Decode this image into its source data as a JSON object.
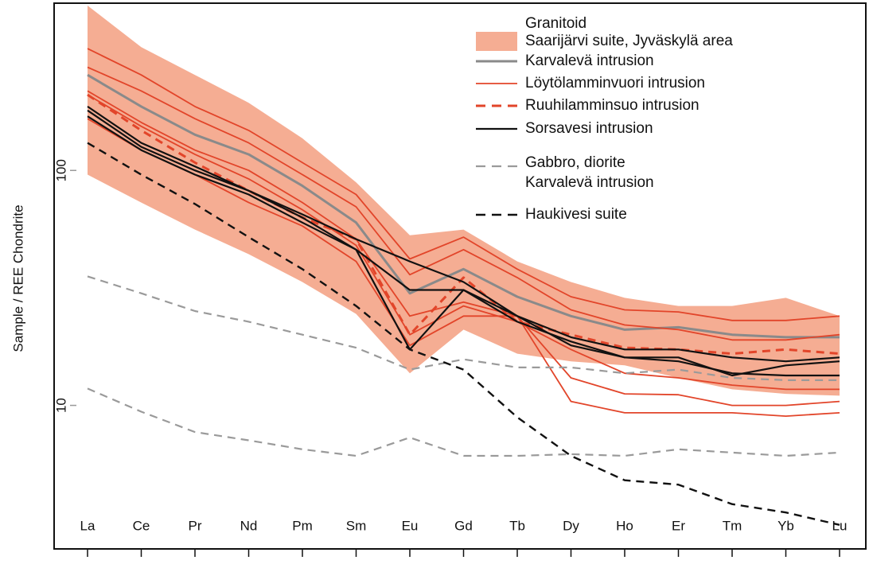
{
  "chart_data": {
    "type": "line",
    "y_label": "Sample / REE Chondrite",
    "log_y": true,
    "categories": [
      "La",
      "Ce",
      "Pr",
      "Nd",
      "Pm",
      "Sm",
      "Eu",
      "Gd",
      "Tb",
      "Dy",
      "Ho",
      "Er",
      "Tm",
      "Yb",
      "Lu"
    ],
    "ylim": [
      2.45,
      515
    ],
    "yticks": [
      10,
      100
    ],
    "legend_groups": [
      "Granitoid",
      "Gabbro, diorite"
    ],
    "series": [
      {
        "name": "Saarijärvi suite, Jyväskylä area",
        "group": 0,
        "kind": "band",
        "color": "#f5ad93",
        "upper": [
          503,
          335,
          255,
          194,
          137,
          89,
          53,
          56,
          41,
          33.5,
          28.7,
          26.5,
          26.5,
          28.7,
          24
        ],
        "lower": [
          96,
          73,
          56,
          44,
          33.5,
          24.5,
          13.7,
          21,
          16.6,
          15.4,
          14.8,
          13.1,
          11.7,
          11.2,
          11
        ]
      },
      {
        "name": "Karvalevä intrusion",
        "group": 0,
        "color": "#8a8a8a",
        "width": 3,
        "dash": false,
        "lines": [
          [
            255,
            187,
            142,
            117,
            86,
            60,
            30,
            38,
            29,
            24,
            21,
            21.5,
            20,
            19.5,
            19.5
          ]
        ]
      },
      {
        "name": "Löytölamminvuori intrusion",
        "group": 0,
        "color": "#e2452a",
        "width": 1.8,
        "dash": false,
        "lines": [
          [
            330,
            255,
            187,
            148,
            108,
            79,
            42,
            52,
            38,
            29,
            25.5,
            25,
            23,
            23,
            24
          ],
          [
            275,
            218,
            166,
            131,
            96,
            70,
            36,
            46,
            35,
            25.5,
            22,
            21,
            19,
            19,
            20
          ],
          [
            210,
            154,
            117,
            92,
            68,
            48,
            20,
            26.5,
            22.7,
            17.3,
            13.7,
            13.1,
            12.2,
            11.7,
            11.7
          ],
          [
            218,
            160,
            122,
            100,
            73,
            51,
            24,
            27.5,
            24,
            13.1,
            11.2,
            11.1,
            10,
            10,
            10.4
          ],
          [
            166,
            122,
            96,
            73,
            58,
            41,
            18,
            24,
            24,
            10.4,
            9.3,
            9.3,
            9.3,
            9,
            9.3
          ]
        ]
      },
      {
        "name": "Ruuhilamminsuo intrusion",
        "group": 0,
        "color": "#e2452a",
        "width": 3,
        "dash": true,
        "lines": [
          [
            210,
            148,
            108,
            82,
            63,
            51,
            20,
            35,
            22.7,
            20,
            17.6,
            17.3,
            16.6,
            17.3,
            16.6
          ]
        ]
      },
      {
        "name": "Sorsavesi intrusion",
        "group": 0,
        "color": "#111111",
        "width": 2.2,
        "dash": false,
        "lines": [
          [
            187,
            131,
            104,
            82,
            65,
            51,
            41,
            33.5,
            24,
            19.5,
            17.3,
            17.3,
            16,
            15.4,
            16
          ],
          [
            180,
            126,
            100,
            82,
            63,
            46,
            17.3,
            31,
            24,
            18,
            16,
            15.4,
            13.7,
            13.4,
            13.4
          ],
          [
            170,
            122,
            96,
            79,
            60,
            46,
            31,
            31,
            22.7,
            18.7,
            16,
            16,
            13.4,
            14.8,
            15.4
          ]
        ]
      },
      {
        "name": "Karvalevä intrusion",
        "group": 1,
        "color": "#9a9a9a",
        "width": 2.2,
        "dash": true,
        "lines": [
          [
            35.4,
            30,
            25.2,
            22.7,
            20,
            17.6,
            14.2,
            15.7,
            14.5,
            14.5,
            13.7,
            14.2,
            13.1,
            12.8,
            12.8
          ],
          [
            11.8,
            9.4,
            7.7,
            7.1,
            6.5,
            6.1,
            7.3,
            6.1,
            6.1,
            6.2,
            6.1,
            6.5,
            6.3,
            6.1,
            6.3
          ]
        ]
      },
      {
        "name": "Haukivesi suite",
        "color": "#111111",
        "width": 2.4,
        "dash": true,
        "lines": [
          [
            131,
            96,
            72,
            52,
            38,
            26.5,
            17.3,
            14.2,
            8.9,
            6.1,
            4.8,
            4.6,
            3.8,
            3.5,
            3.1
          ]
        ]
      }
    ]
  }
}
